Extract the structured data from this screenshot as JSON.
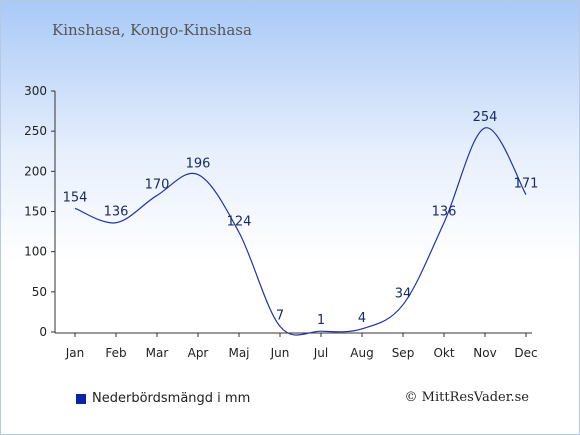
{
  "title": "Kinshasa, Kongo-Kinshasa",
  "legend_label": "Nederbördsmängd i mm",
  "copyright": "© MittResVader.se",
  "colors": {
    "line": "#2233aa",
    "legend_swatch": "#0a23a8",
    "axis": "#333333"
  },
  "chart_data": {
    "type": "line",
    "categories": [
      "Jan",
      "Feb",
      "Mar",
      "Apr",
      "Maj",
      "Jun",
      "Jul",
      "Aug",
      "Sep",
      "Okt",
      "Nov",
      "Dec"
    ],
    "series": [
      {
        "name": "Nederbördsmängd i mm",
        "values": [
          154,
          136,
          170,
          196,
          124,
          7,
          1,
          4,
          34,
          136,
          254,
          171
        ]
      }
    ],
    "yticks": [
      0,
      50,
      100,
      150,
      200,
      250,
      300
    ],
    "ylim": [
      0,
      300
    ],
    "grid": false,
    "legend": "bottom-left"
  }
}
